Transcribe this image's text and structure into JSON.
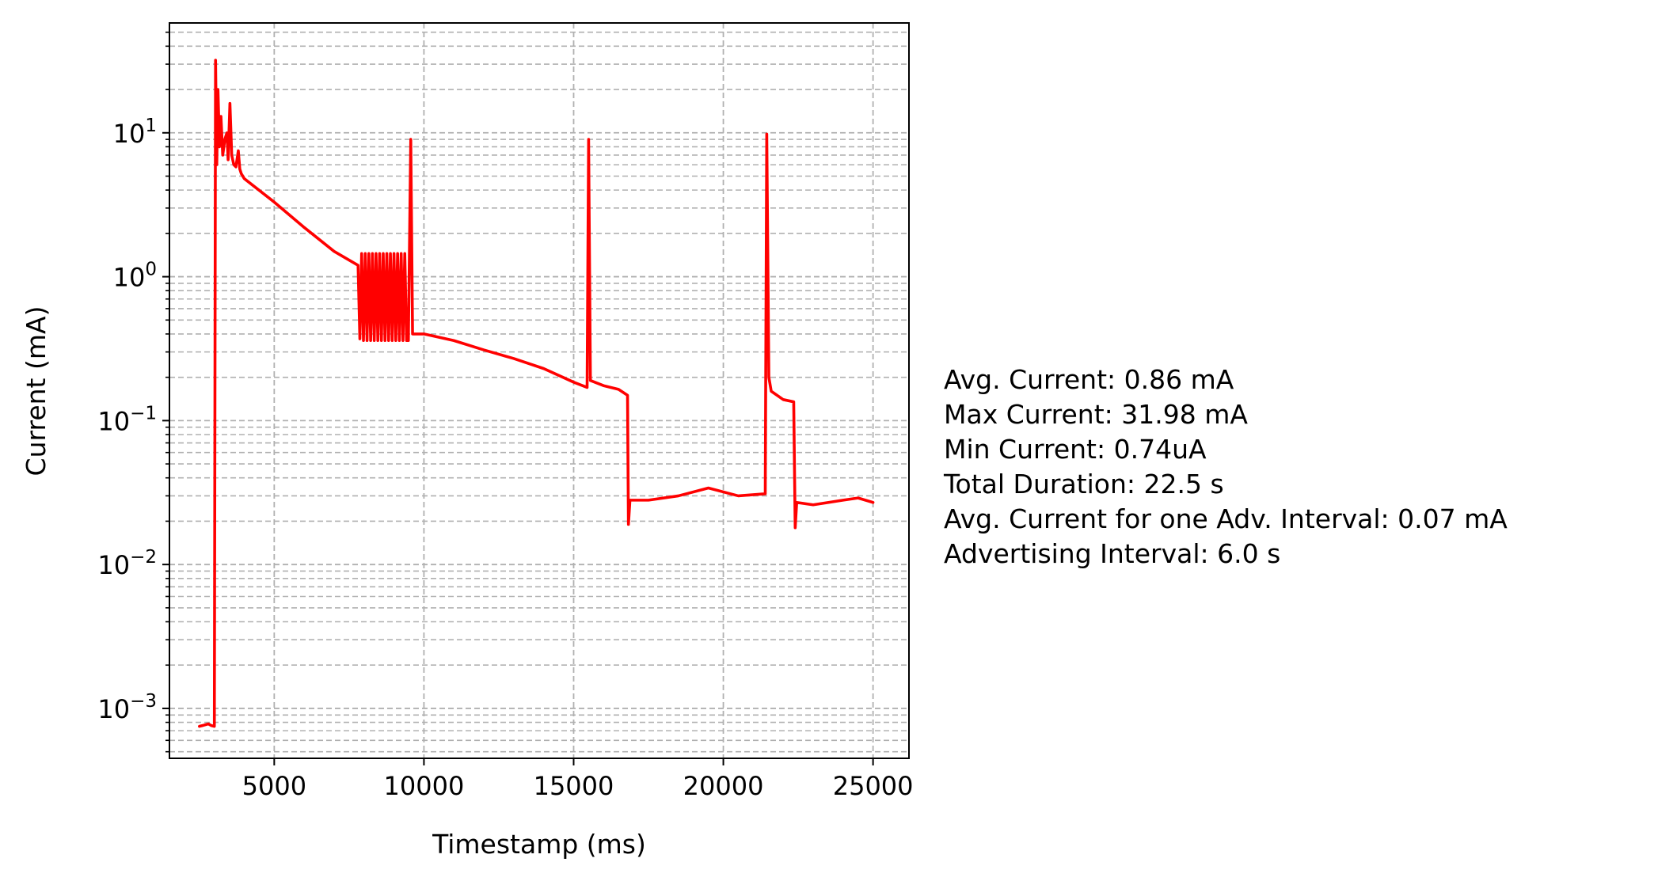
{
  "chart_data": {
    "type": "line",
    "xlabel": "Timestamp (ms)",
    "ylabel": "Current (mA)",
    "xlim": [
      1500,
      26200
    ],
    "ylim": [
      0.00045,
      58
    ],
    "y_scale": "log",
    "grid": "major and minor, dashed",
    "x_ticks": [
      5000,
      10000,
      15000,
      20000,
      25000
    ],
    "x_tick_labels": [
      "5000",
      "10000",
      "15000",
      "20000",
      "25000"
    ],
    "y_ticks": [
      0.001,
      0.01,
      0.1,
      1,
      10
    ],
    "y_tick_labels": [
      {
        "base": "10",
        "exp": "−3"
      },
      {
        "base": "10",
        "exp": "−2"
      },
      {
        "base": "10",
        "exp": "−1"
      },
      {
        "base": "10",
        "exp": "0"
      },
      {
        "base": "10",
        "exp": "1"
      }
    ],
    "series": [
      {
        "color": "#ff0000",
        "points": [
          [
            2500,
            0.00075
          ],
          [
            2800,
            0.00078
          ],
          [
            2900,
            0.00076
          ],
          [
            3000,
            0.00075
          ],
          [
            3040,
            31.98
          ],
          [
            3080,
            6
          ],
          [
            3120,
            20
          ],
          [
            3170,
            8
          ],
          [
            3220,
            13
          ],
          [
            3280,
            7
          ],
          [
            3350,
            9
          ],
          [
            3420,
            10
          ],
          [
            3460,
            6.5
          ],
          [
            3520,
            16
          ],
          [
            3580,
            7
          ],
          [
            3650,
            6
          ],
          [
            3720,
            5.8
          ],
          [
            3800,
            7.5
          ],
          [
            3850,
            5.6
          ],
          [
            3900,
            5.2
          ],
          [
            4000,
            4.8
          ],
          [
            5000,
            3.3
          ],
          [
            6000,
            2.2
          ],
          [
            7000,
            1.5
          ],
          [
            7800,
            1.2
          ],
          [
            7860,
            0.37
          ],
          [
            7920,
            1.45
          ],
          [
            7980,
            0.36
          ],
          [
            8040,
            1.45
          ],
          [
            8100,
            0.36
          ],
          [
            8160,
            1.45
          ],
          [
            8220,
            0.36
          ],
          [
            8280,
            1.45
          ],
          [
            8340,
            0.36
          ],
          [
            8400,
            1.45
          ],
          [
            8460,
            0.36
          ],
          [
            8520,
            1.45
          ],
          [
            8580,
            0.36
          ],
          [
            8640,
            1.45
          ],
          [
            8700,
            0.36
          ],
          [
            8760,
            1.45
          ],
          [
            8820,
            0.36
          ],
          [
            8880,
            1.45
          ],
          [
            8940,
            0.36
          ],
          [
            9000,
            1.45
          ],
          [
            9060,
            0.36
          ],
          [
            9120,
            1.45
          ],
          [
            9180,
            0.36
          ],
          [
            9240,
            1.45
          ],
          [
            9300,
            0.36
          ],
          [
            9360,
            1.45
          ],
          [
            9420,
            0.36
          ],
          [
            9480,
            0.36
          ],
          [
            9560,
            9.0
          ],
          [
            9620,
            0.4
          ],
          [
            10000,
            0.4
          ],
          [
            11000,
            0.36
          ],
          [
            12000,
            0.31
          ],
          [
            13000,
            0.27
          ],
          [
            14000,
            0.23
          ],
          [
            15000,
            0.185
          ],
          [
            15450,
            0.17
          ],
          [
            15500,
            9.0
          ],
          [
            15560,
            0.19
          ],
          [
            16000,
            0.175
          ],
          [
            16500,
            0.165
          ],
          [
            16800,
            0.15
          ],
          [
            16830,
            0.019
          ],
          [
            16880,
            0.028
          ],
          [
            17500,
            0.028
          ],
          [
            18500,
            0.03
          ],
          [
            19500,
            0.034
          ],
          [
            20500,
            0.03
          ],
          [
            21400,
            0.031
          ],
          [
            21450,
            9.8
          ],
          [
            21520,
            0.2
          ],
          [
            21600,
            0.16
          ],
          [
            22000,
            0.14
          ],
          [
            22350,
            0.135
          ],
          [
            22400,
            0.018
          ],
          [
            22450,
            0.027
          ],
          [
            23000,
            0.026
          ],
          [
            24000,
            0.028
          ],
          [
            24500,
            0.029
          ],
          [
            25000,
            0.027
          ]
        ]
      }
    ],
    "annotations": [
      "Avg. Current: 0.86 mA",
      "Max Current: 31.98 mA",
      "Min Current: 0.74uA",
      "Total Duration: 22.5 s",
      "Avg. Current for one Adv. Interval: 0.07 mA",
      "Advertising Interval: 6.0 s"
    ]
  }
}
